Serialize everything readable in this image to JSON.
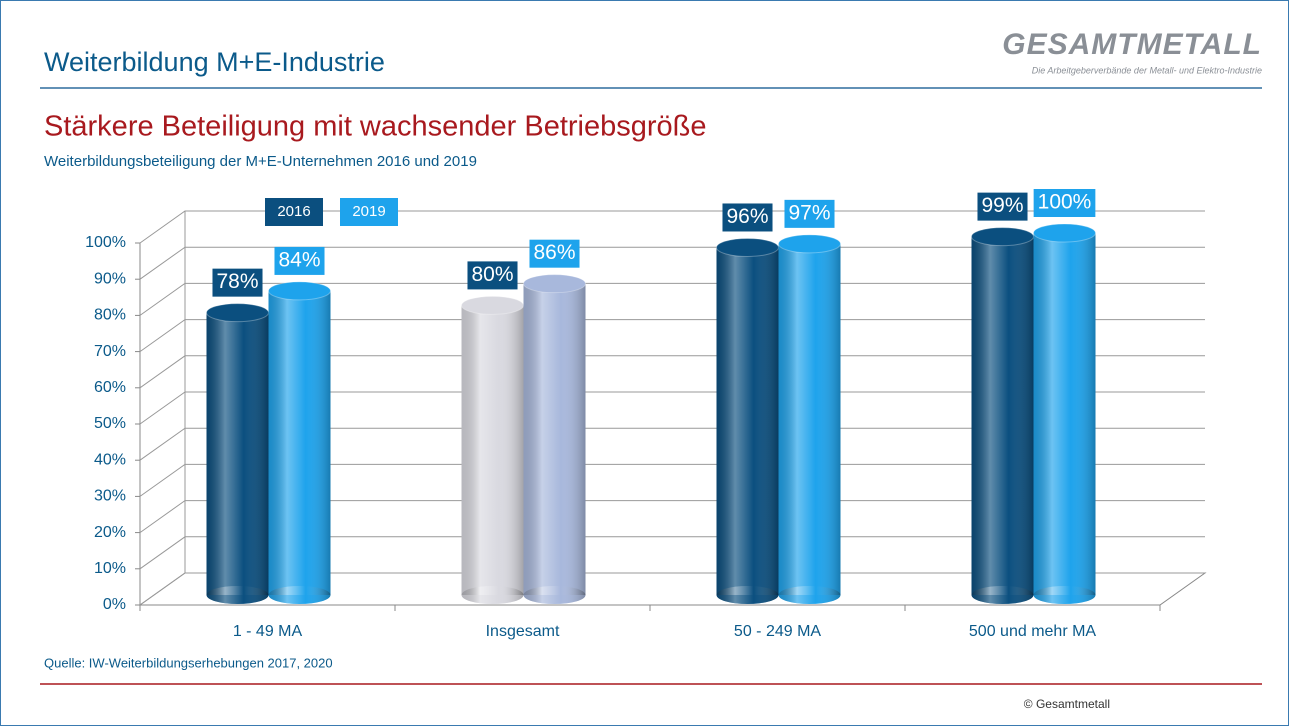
{
  "header": {
    "title": "Weiterbildung M+E-Industrie",
    "logo": "GESAMTMETALL",
    "logo_tagline": "Die Arbeitgeberverbände der Metall- und Elektro-Industrie"
  },
  "chart_data": {
    "type": "bar",
    "title": "Stärkere Beteiligung mit wachsender Betriebsgröße",
    "subtitle": "Weiterbildungsbeteiligung der M+E-Unternehmen 2016 und 2019",
    "categories": [
      "1 - 49 MA",
      "Insgesamt",
      "50 - 249 MA",
      "500 und mehr MA"
    ],
    "series": [
      {
        "name": "2016",
        "color": "#0b4f7f",
        "colors": [
          "#0b4f7f",
          "#d9d9e0",
          "#0b4f7f",
          "#0b4f7f"
        ],
        "values": [
          78,
          80,
          96,
          99
        ],
        "value_labels": [
          "78%",
          "80%",
          "96%",
          "99%"
        ]
      },
      {
        "name": "2019",
        "color": "#1ea3ec",
        "colors": [
          "#1ea3ec",
          "#a8b8dc",
          "#1ea3ec",
          "#1ea3ec"
        ],
        "values": [
          84,
          86,
          97,
          100
        ],
        "value_labels": [
          "84%",
          "86%",
          "97%",
          "100%"
        ]
      }
    ],
    "ylim": [
      0,
      100
    ],
    "yticks": [
      {
        "value": 0,
        "label": "0%"
      },
      {
        "value": 10,
        "label": "10%"
      },
      {
        "value": 20,
        "label": "20%"
      },
      {
        "value": 30,
        "label": "30%"
      },
      {
        "value": 40,
        "label": "40%"
      },
      {
        "value": 50,
        "label": "50%"
      },
      {
        "value": 60,
        "label": "60%"
      },
      {
        "value": 70,
        "label": "70%"
      },
      {
        "value": 80,
        "label": "80%"
      },
      {
        "value": 90,
        "label": "90%"
      },
      {
        "value": 100,
        "label": "100%"
      }
    ],
    "grid": true,
    "source": "Quelle: IW-Weiterbildungserhebungen 2017, 2020"
  },
  "footer": {
    "copyright": "© Gesamtmetall"
  }
}
